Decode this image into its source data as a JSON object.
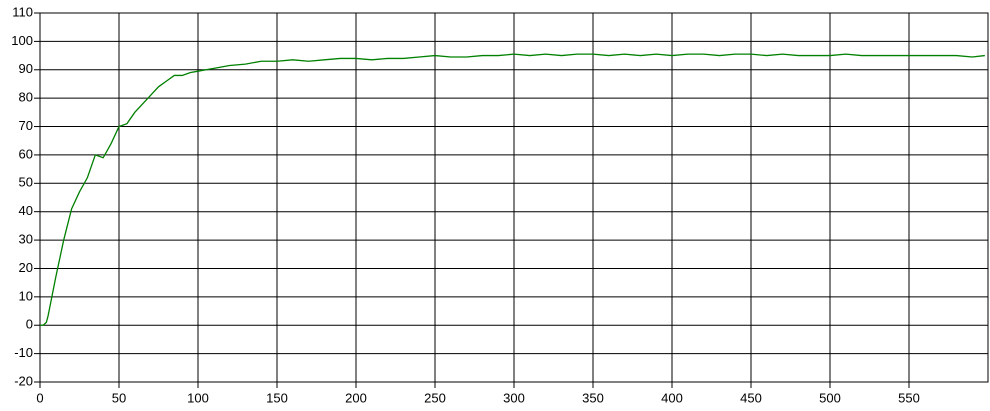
{
  "chart_data": {
    "type": "line",
    "x": [
      0,
      2,
      4,
      5,
      10,
      15,
      20,
      25,
      30,
      35,
      40,
      45,
      50,
      55,
      60,
      65,
      70,
      75,
      80,
      85,
      90,
      95,
      100,
      110,
      120,
      130,
      140,
      150,
      160,
      170,
      180,
      190,
      200,
      210,
      220,
      230,
      240,
      250,
      260,
      270,
      280,
      290,
      300,
      310,
      320,
      330,
      340,
      350,
      360,
      370,
      380,
      390,
      400,
      410,
      420,
      430,
      440,
      450,
      460,
      470,
      480,
      490,
      500,
      510,
      520,
      530,
      540,
      550,
      560,
      570,
      580,
      590,
      598
    ],
    "series": [
      {
        "color": "#008000",
        "values": [
          0,
          0,
          1,
          3,
          17,
          30,
          41,
          47,
          52,
          60,
          59,
          64,
          70,
          71,
          75,
          78,
          81,
          84,
          86,
          88,
          88,
          89,
          89.5,
          90.5,
          91.5,
          92,
          93,
          93,
          93.5,
          93,
          93.5,
          94,
          94,
          93.5,
          94,
          94,
          94.5,
          95,
          94.5,
          94.5,
          95,
          95,
          95.5,
          95,
          95.5,
          95,
          95.5,
          95.5,
          95,
          95.5,
          95,
          95.5,
          95,
          95.5,
          95.5,
          95,
          95.5,
          95.5,
          95,
          95.5,
          95,
          95,
          95,
          95.5,
          95,
          95,
          95,
          95,
          95,
          95,
          95,
          94.5,
          95
        ]
      }
    ],
    "xlim": [
      0,
      600
    ],
    "xticks": [
      0,
      50,
      100,
      150,
      200,
      250,
      300,
      350,
      400,
      450,
      500,
      550
    ],
    "ylim": [
      -20,
      110
    ],
    "yticks": [
      -20,
      -10,
      0,
      10,
      20,
      30,
      40,
      50,
      60,
      70,
      80,
      90,
      100,
      110
    ],
    "grid": true
  }
}
